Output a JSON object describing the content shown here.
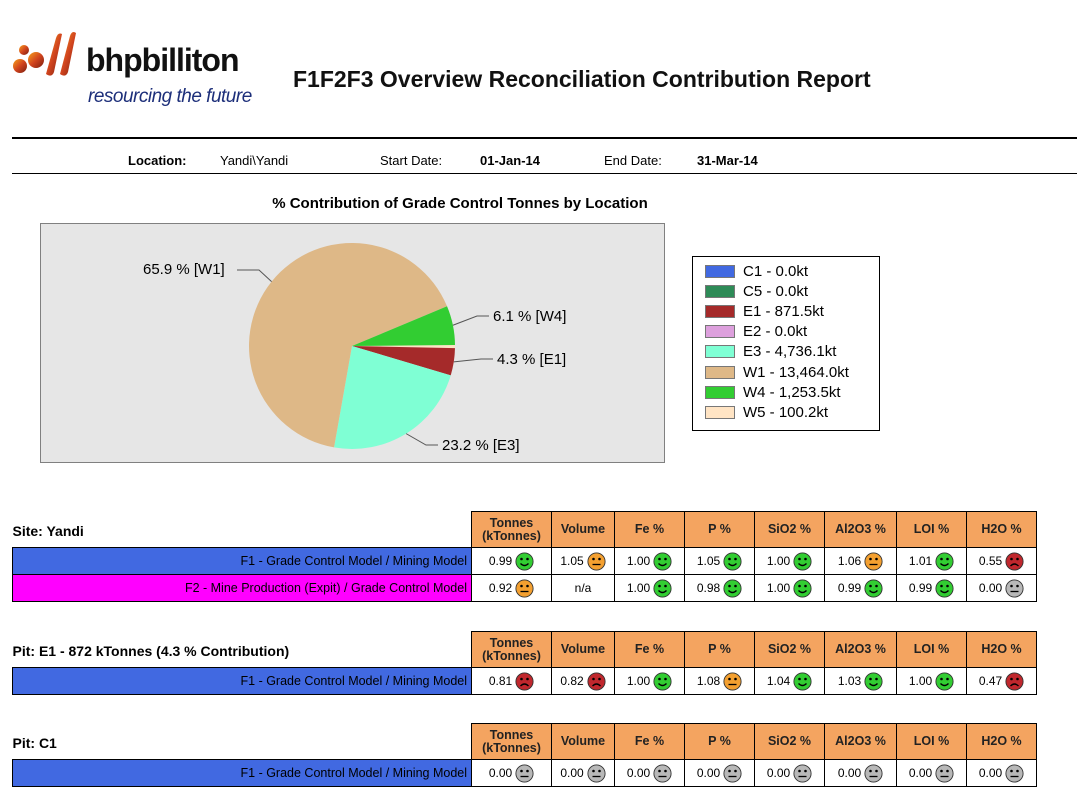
{
  "header": {
    "brand": "bhpbilliton",
    "tagline": "resourcing the future",
    "title": "F1F2F3 Overview Reconciliation Contribution Report"
  },
  "info": {
    "location_label": "Location:",
    "location_value": "Yandi\\Yandi",
    "start_label": "Start Date:",
    "start_value": "01-Jan-14",
    "end_label": "End Date:",
    "end_value": "31-Mar-14"
  },
  "chart_data": {
    "type": "pie",
    "title": "% Contribution of Grade Control Tonnes by Location",
    "slices": [
      {
        "label": "C1",
        "value": 0.0,
        "color": "#4169e1",
        "legend": "C1 - 0.0kt"
      },
      {
        "label": "C5",
        "value": 0.0,
        "color": "#2e8b57",
        "legend": "C5 - 0.0kt"
      },
      {
        "label": "E1",
        "value": 871.5,
        "color": "#a52a2a",
        "legend": "E1 - 871.5kt"
      },
      {
        "label": "E2",
        "value": 0.0,
        "color": "#dda0dd",
        "legend": "E2 - 0.0kt"
      },
      {
        "label": "E3",
        "value": 4736.1,
        "color": "#7fffd4",
        "legend": "E3 - 4,736.1kt"
      },
      {
        "label": "W1",
        "value": 13464.0,
        "color": "#deb887",
        "legend": "W1 - 13,464.0kt"
      },
      {
        "label": "W4",
        "value": 1253.5,
        "color": "#32cd32",
        "legend": "W4 - 1,253.5kt"
      },
      {
        "label": "W5",
        "value": 100.2,
        "color": "#ffe4c4",
        "legend": "W5 - 100.2kt"
      }
    ],
    "data_labels": [
      {
        "slice": "W1",
        "text": "65.9 % [W1]"
      },
      {
        "slice": "W4",
        "text": "6.1 % [W4]"
      },
      {
        "slice": "E1",
        "text": "4.3 % [E1]"
      },
      {
        "slice": "E3",
        "text": "23.2 % [E3]"
      }
    ],
    "legend_position": "right"
  },
  "columns": [
    "Tonnes (kTonnes)",
    "Volume",
    "Fe %",
    "P %",
    "SiO2 %",
    "Al2O3 %",
    "LOI %",
    "H2O %"
  ],
  "sections": [
    {
      "title": "Site: Yandi",
      "rows": [
        {
          "label": "F1 - Grade Control Model / Mining Model",
          "bg": "#4169e1",
          "cells": [
            [
              "0.99",
              "good"
            ],
            [
              "1.05",
              "warn"
            ],
            [
              "1.00",
              "good"
            ],
            [
              "1.05",
              "good"
            ],
            [
              "1.00",
              "good"
            ],
            [
              "1.06",
              "warn"
            ],
            [
              "1.01",
              "good"
            ],
            [
              "0.55",
              "bad"
            ]
          ]
        },
        {
          "label": "F2 - Mine Production (Expit) / Grade Control Model",
          "bg": "#ff00ff",
          "cells": [
            [
              "0.92",
              "warn"
            ],
            [
              "n/a",
              ""
            ],
            [
              "1.00",
              "good"
            ],
            [
              "0.98",
              "good"
            ],
            [
              "1.00",
              "good"
            ],
            [
              "0.99",
              "good"
            ],
            [
              "0.99",
              "good"
            ],
            [
              "0.00",
              "none"
            ]
          ]
        }
      ]
    },
    {
      "title": "Pit: E1 - 872 kTonnes (4.3 % Contribution)",
      "rows": [
        {
          "label": "F1 - Grade Control Model / Mining Model",
          "bg": "#4169e1",
          "cells": [
            [
              "0.81",
              "bad"
            ],
            [
              "0.82",
              "bad"
            ],
            [
              "1.00",
              "good"
            ],
            [
              "1.08",
              "warn"
            ],
            [
              "1.04",
              "good"
            ],
            [
              "1.03",
              "good"
            ],
            [
              "1.00",
              "good"
            ],
            [
              "0.47",
              "bad"
            ]
          ]
        }
      ]
    },
    {
      "title": "Pit: C1",
      "rows": [
        {
          "label": "F1 - Grade Control Model / Mining Model",
          "bg": "#4169e1",
          "cells": [
            [
              "0.00",
              "none"
            ],
            [
              "0.00",
              "none"
            ],
            [
              "0.00",
              "none"
            ],
            [
              "0.00",
              "none"
            ],
            [
              "0.00",
              "none"
            ],
            [
              "0.00",
              "none"
            ],
            [
              "0.00",
              "none"
            ],
            [
              "0.00",
              "none"
            ]
          ]
        }
      ]
    }
  ],
  "face_colors": {
    "good": "#32cd32",
    "warn": "#f4a030",
    "bad": "#c0272d",
    "none": "#b8b8b8"
  },
  "face_icons": {
    "good": "smiley-good-icon",
    "warn": "smiley-neutral-icon",
    "bad": "smiley-bad-icon",
    "none": "smiley-na-icon"
  }
}
